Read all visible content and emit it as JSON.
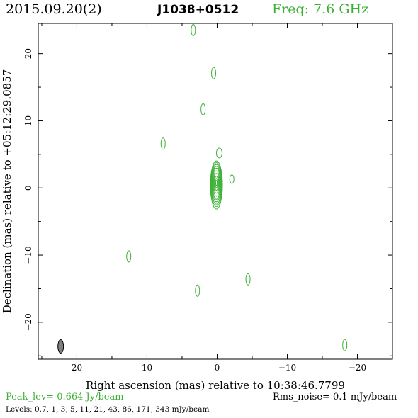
{
  "header": {
    "date": "2015.09.20(2)",
    "source": "J1038+0512",
    "freq": "Freq: 7.6 GHz"
  },
  "footer": {
    "peak": "Peak_lev=  0.664 Jy/beam",
    "rms": "Rms_noise=  0.1 mJy/beam",
    "levels": "Levels: 0.7,   1,   3,   5,  11,  21,  43,  86, 171, 343 mJy/beam"
  },
  "colors": {
    "contour": "#3cb035",
    "axis": "#000000",
    "beam": "#808080"
  },
  "chart_data": {
    "type": "contour",
    "xlabel": "Right ascension (mas) relative to 10:38:46.7799",
    "ylabel": "Declination (mas) relative to +05:12:29.0857",
    "xlim": [
      25.5,
      -25.0
    ],
    "ylim": [
      -25.5,
      24.5
    ],
    "xticks": [
      20,
      10,
      0,
      -10,
      -20
    ],
    "yticks": [
      20,
      10,
      0,
      -10,
      -20
    ],
    "xticklabels": [
      "20",
      "10",
      "0",
      "−10",
      "−20"
    ],
    "yticklabels": [
      "20",
      "10",
      "0",
      "−10",
      "−20"
    ],
    "core": {
      "x": 0.1,
      "y": 0.6,
      "levels_mJy": [
        0.7,
        1,
        3,
        5,
        11,
        21,
        43,
        86,
        171,
        343
      ]
    },
    "components": [
      {
        "x": -0.3,
        "y": 5.2
      },
      {
        "x": -2.1,
        "y": 1.3
      }
    ],
    "noise_blobs": [
      {
        "x": 3.4,
        "y": 23.5
      },
      {
        "x": 0.5,
        "y": 17.1
      },
      {
        "x": 2.0,
        "y": 11.7
      },
      {
        "x": 7.7,
        "y": 6.6
      },
      {
        "x": 12.6,
        "y": -10.2
      },
      {
        "x": 2.8,
        "y": -15.3
      },
      {
        "x": -4.4,
        "y": -13.6
      },
      {
        "x": -18.2,
        "y": -23.4
      }
    ],
    "beam": {
      "x": 22.3,
      "y": -23.6
    }
  }
}
